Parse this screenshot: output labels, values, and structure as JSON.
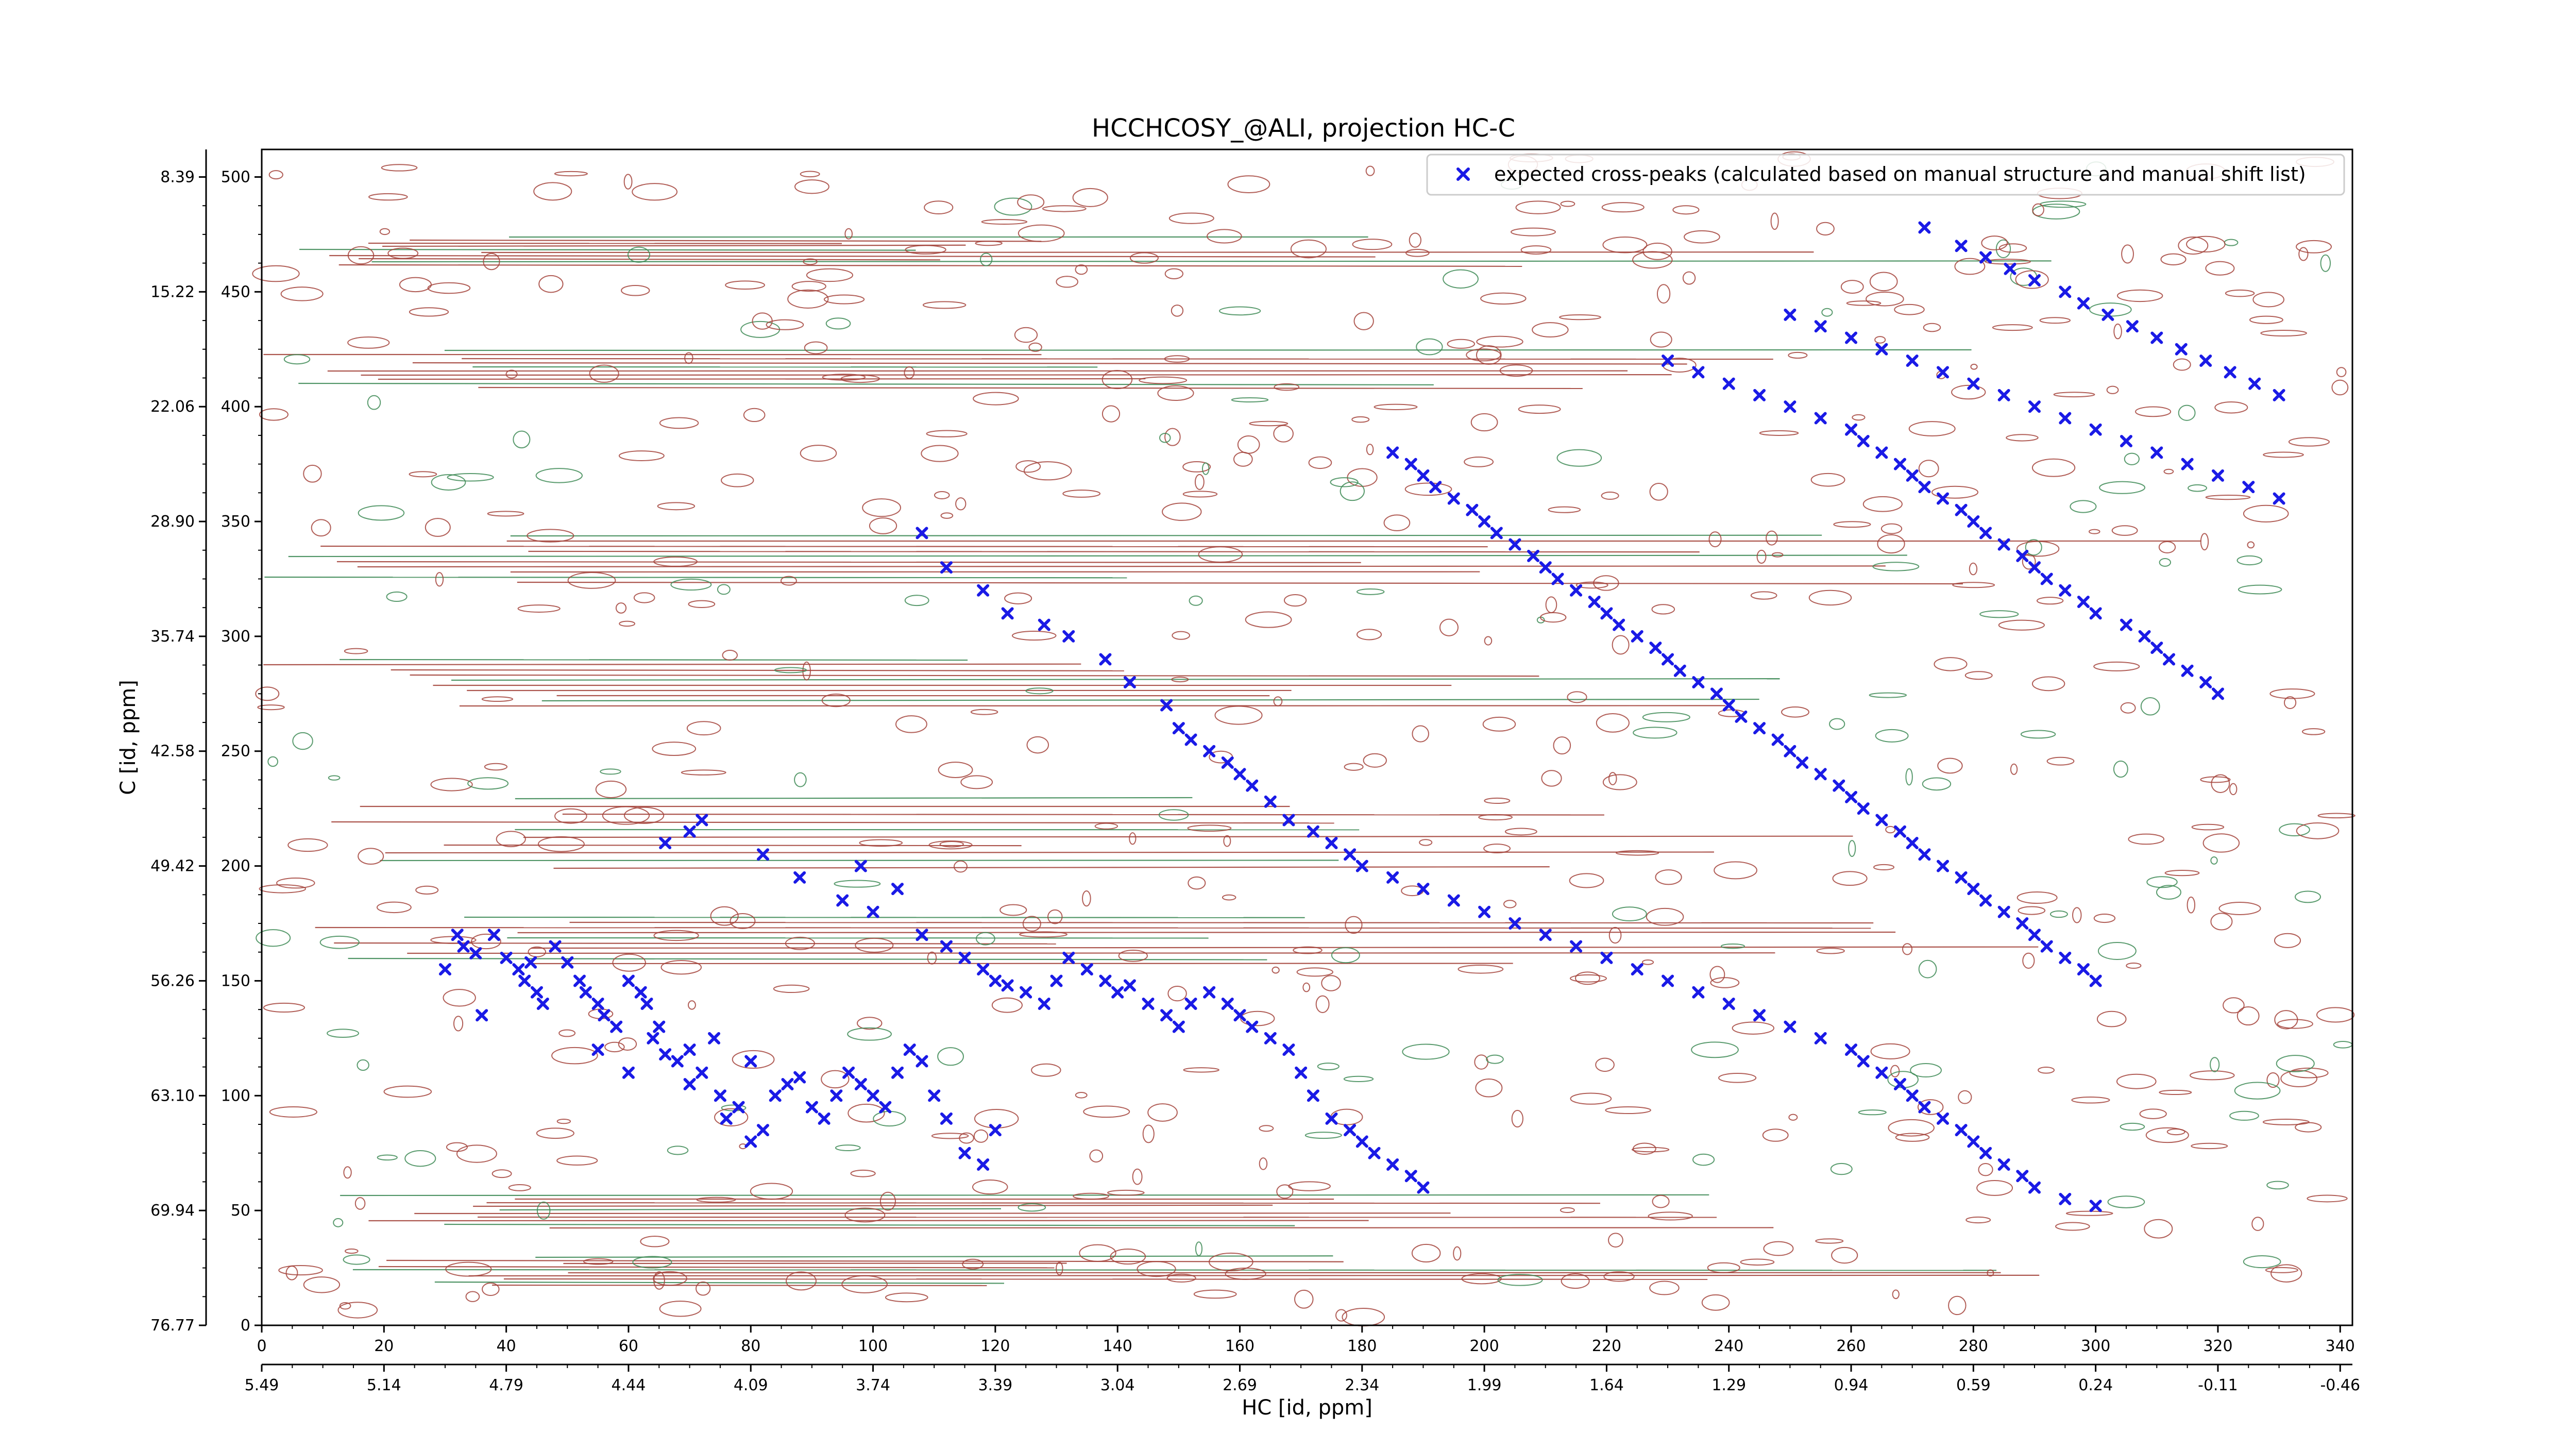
{
  "chart_data": {
    "type": "scatter",
    "title": "HCCHCOSY_@ALI, projection HC-C",
    "xlabel": "HC [id, ppm]",
    "ylabel": "C [id, ppm]",
    "xlim": [
      0,
      342
    ],
    "ylim": [
      0,
      512
    ],
    "x_ticks": [
      0,
      20,
      40,
      60,
      80,
      100,
      120,
      140,
      160,
      180,
      200,
      220,
      240,
      260,
      280,
      300,
      320,
      340
    ],
    "x_tick_labels": [
      "0",
      "20",
      "40",
      "60",
      "80",
      "100",
      "120",
      "140",
      "160",
      "180",
      "200",
      "220",
      "240",
      "260",
      "280",
      "300",
      "320",
      "340"
    ],
    "x_ppm_ticks": [
      {
        "pos": 0,
        "label": "5.49"
      },
      {
        "pos": 20,
        "label": "5.14"
      },
      {
        "pos": 40,
        "label": "4.79"
      },
      {
        "pos": 60,
        "label": "4.44"
      },
      {
        "pos": 80,
        "label": "4.09"
      },
      {
        "pos": 100,
        "label": "3.74"
      },
      {
        "pos": 120,
        "label": "3.39"
      },
      {
        "pos": 140,
        "label": "3.04"
      },
      {
        "pos": 160,
        "label": "2.69"
      },
      {
        "pos": 180,
        "label": "2.34"
      },
      {
        "pos": 200,
        "label": "1.99"
      },
      {
        "pos": 220,
        "label": "1.64"
      },
      {
        "pos": 240,
        "label": "1.29"
      },
      {
        "pos": 260,
        "label": "0.94"
      },
      {
        "pos": 280,
        "label": "0.59"
      },
      {
        "pos": 300,
        "label": "0.24"
      },
      {
        "pos": 320,
        "label": "-0.11"
      },
      {
        "pos": 340,
        "label": "-0.46"
      }
    ],
    "y_ticks": [
      0,
      50,
      100,
      150,
      200,
      250,
      300,
      350,
      400,
      450,
      500
    ],
    "y_tick_labels": [
      "0",
      "50",
      "100",
      "150",
      "200",
      "250",
      "300",
      "350",
      "400",
      "450",
      "500"
    ],
    "y_ppm_ticks": [
      {
        "pos": 0,
        "label": "76.77"
      },
      {
        "pos": 50,
        "label": "69.94"
      },
      {
        "pos": 100,
        "label": "63.10"
      },
      {
        "pos": 150,
        "label": "56.26"
      },
      {
        "pos": 200,
        "label": "49.42"
      },
      {
        "pos": 250,
        "label": "42.58"
      },
      {
        "pos": 300,
        "label": "35.74"
      },
      {
        "pos": 350,
        "label": "28.90"
      },
      {
        "pos": 400,
        "label": "22.06"
      },
      {
        "pos": 450,
        "label": "15.22"
      },
      {
        "pos": 500,
        "label": "8.39"
      }
    ],
    "grid": false,
    "legend_position": "top-right",
    "colors": {
      "peaks": "#1a1ae6",
      "contour_positive": "#a3423a",
      "contour_negative": "#3d8a55"
    },
    "series": [
      {
        "name": "expected cross-peaks (calculated based on manual structure and manual shift list)",
        "marker": "x",
        "color": "#1a1ae6",
        "points": [
          [
            30,
            155
          ],
          [
            32,
            170
          ],
          [
            33,
            165
          ],
          [
            35,
            162
          ],
          [
            36,
            135
          ],
          [
            38,
            170
          ],
          [
            40,
            160
          ],
          [
            42,
            155
          ],
          [
            43,
            150
          ],
          [
            44,
            158
          ],
          [
            45,
            145
          ],
          [
            46,
            140
          ],
          [
            48,
            165
          ],
          [
            50,
            158
          ],
          [
            52,
            150
          ],
          [
            53,
            145
          ],
          [
            55,
            140
          ],
          [
            55,
            120
          ],
          [
            56,
            135
          ],
          [
            58,
            130
          ],
          [
            60,
            150
          ],
          [
            60,
            110
          ],
          [
            62,
            145
          ],
          [
            63,
            140
          ],
          [
            64,
            125
          ],
          [
            65,
            130
          ],
          [
            66,
            118
          ],
          [
            68,
            115
          ],
          [
            70,
            120
          ],
          [
            70,
            105
          ],
          [
            72,
            110
          ],
          [
            74,
            125
          ],
          [
            75,
            100
          ],
          [
            76,
            90
          ],
          [
            78,
            95
          ],
          [
            80,
            115
          ],
          [
            80,
            80
          ],
          [
            82,
            85
          ],
          [
            84,
            100
          ],
          [
            86,
            105
          ],
          [
            88,
            108
          ],
          [
            90,
            95
          ],
          [
            92,
            90
          ],
          [
            94,
            100
          ],
          [
            96,
            110
          ],
          [
            98,
            105
          ],
          [
            100,
            100
          ],
          [
            102,
            95
          ],
          [
            104,
            110
          ],
          [
            106,
            120
          ],
          [
            108,
            115
          ],
          [
            110,
            100
          ],
          [
            112,
            90
          ],
          [
            115,
            75
          ],
          [
            118,
            70
          ],
          [
            120,
            85
          ],
          [
            66,
            210
          ],
          [
            70,
            215
          ],
          [
            72,
            220
          ],
          [
            82,
            205
          ],
          [
            88,
            195
          ],
          [
            95,
            185
          ],
          [
            98,
            200
          ],
          [
            100,
            180
          ],
          [
            104,
            190
          ],
          [
            108,
            170
          ],
          [
            112,
            165
          ],
          [
            115,
            160
          ],
          [
            118,
            155
          ],
          [
            120,
            150
          ],
          [
            122,
            148
          ],
          [
            125,
            145
          ],
          [
            128,
            140
          ],
          [
            130,
            150
          ],
          [
            132,
            160
          ],
          [
            135,
            155
          ],
          [
            138,
            150
          ],
          [
            140,
            145
          ],
          [
            142,
            148
          ],
          [
            145,
            140
          ],
          [
            148,
            135
          ],
          [
            150,
            130
          ],
          [
            152,
            140
          ],
          [
            155,
            145
          ],
          [
            158,
            140
          ],
          [
            160,
            135
          ],
          [
            162,
            130
          ],
          [
            165,
            125
          ],
          [
            168,
            120
          ],
          [
            170,
            110
          ],
          [
            172,
            100
          ],
          [
            175,
            90
          ],
          [
            178,
            85
          ],
          [
            180,
            80
          ],
          [
            182,
            75
          ],
          [
            185,
            70
          ],
          [
            188,
            65
          ],
          [
            190,
            60
          ],
          [
            108,
            345
          ],
          [
            112,
            330
          ],
          [
            118,
            320
          ],
          [
            122,
            310
          ],
          [
            128,
            305
          ],
          [
            132,
            300
          ],
          [
            138,
            290
          ],
          [
            142,
            280
          ],
          [
            148,
            270
          ],
          [
            150,
            260
          ],
          [
            152,
            255
          ],
          [
            155,
            250
          ],
          [
            158,
            245
          ],
          [
            160,
            240
          ],
          [
            162,
            235
          ],
          [
            165,
            228
          ],
          [
            168,
            220
          ],
          [
            172,
            215
          ],
          [
            175,
            210
          ],
          [
            178,
            205
          ],
          [
            180,
            200
          ],
          [
            185,
            195
          ],
          [
            190,
            190
          ],
          [
            195,
            185
          ],
          [
            200,
            180
          ],
          [
            205,
            175
          ],
          [
            210,
            170
          ],
          [
            215,
            165
          ],
          [
            220,
            160
          ],
          [
            225,
            155
          ],
          [
            230,
            150
          ],
          [
            235,
            145
          ],
          [
            240,
            140
          ],
          [
            245,
            135
          ],
          [
            250,
            130
          ],
          [
            255,
            125
          ],
          [
            260,
            120
          ],
          [
            262,
            115
          ],
          [
            265,
            110
          ],
          [
            268,
            105
          ],
          [
            270,
            100
          ],
          [
            272,
            95
          ],
          [
            275,
            90
          ],
          [
            278,
            85
          ],
          [
            280,
            80
          ],
          [
            282,
            75
          ],
          [
            285,
            70
          ],
          [
            288,
            65
          ],
          [
            290,
            60
          ],
          [
            295,
            55
          ],
          [
            300,
            52
          ],
          [
            185,
            380
          ],
          [
            188,
            375
          ],
          [
            190,
            370
          ],
          [
            192,
            365
          ],
          [
            195,
            360
          ],
          [
            198,
            355
          ],
          [
            200,
            350
          ],
          [
            202,
            345
          ],
          [
            205,
            340
          ],
          [
            208,
            335
          ],
          [
            210,
            330
          ],
          [
            212,
            325
          ],
          [
            215,
            320
          ],
          [
            218,
            315
          ],
          [
            220,
            310
          ],
          [
            222,
            305
          ],
          [
            225,
            300
          ],
          [
            228,
            295
          ],
          [
            230,
            290
          ],
          [
            232,
            285
          ],
          [
            235,
            280
          ],
          [
            238,
            275
          ],
          [
            240,
            270
          ],
          [
            242,
            265
          ],
          [
            245,
            260
          ],
          [
            248,
            255
          ],
          [
            250,
            250
          ],
          [
            252,
            245
          ],
          [
            255,
            240
          ],
          [
            258,
            235
          ],
          [
            260,
            230
          ],
          [
            262,
            225
          ],
          [
            265,
            220
          ],
          [
            268,
            215
          ],
          [
            270,
            210
          ],
          [
            272,
            205
          ],
          [
            275,
            200
          ],
          [
            278,
            195
          ],
          [
            280,
            190
          ],
          [
            282,
            185
          ],
          [
            285,
            180
          ],
          [
            288,
            175
          ],
          [
            290,
            170
          ],
          [
            292,
            165
          ],
          [
            295,
            160
          ],
          [
            298,
            155
          ],
          [
            300,
            150
          ],
          [
            230,
            420
          ],
          [
            235,
            415
          ],
          [
            240,
            410
          ],
          [
            245,
            405
          ],
          [
            250,
            400
          ],
          [
            255,
            395
          ],
          [
            260,
            390
          ],
          [
            262,
            385
          ],
          [
            265,
            380
          ],
          [
            268,
            375
          ],
          [
            270,
            370
          ],
          [
            272,
            365
          ],
          [
            275,
            360
          ],
          [
            278,
            355
          ],
          [
            280,
            350
          ],
          [
            282,
            345
          ],
          [
            285,
            340
          ],
          [
            288,
            335
          ],
          [
            290,
            330
          ],
          [
            292,
            325
          ],
          [
            295,
            320
          ],
          [
            298,
            315
          ],
          [
            300,
            310
          ],
          [
            305,
            305
          ],
          [
            308,
            300
          ],
          [
            310,
            295
          ],
          [
            312,
            290
          ],
          [
            315,
            285
          ],
          [
            318,
            280
          ],
          [
            320,
            275
          ],
          [
            250,
            440
          ],
          [
            255,
            435
          ],
          [
            260,
            430
          ],
          [
            265,
            425
          ],
          [
            270,
            420
          ],
          [
            275,
            415
          ],
          [
            280,
            410
          ],
          [
            285,
            405
          ],
          [
            290,
            400
          ],
          [
            295,
            395
          ],
          [
            300,
            390
          ],
          [
            305,
            385
          ],
          [
            310,
            380
          ],
          [
            315,
            375
          ],
          [
            320,
            370
          ],
          [
            325,
            365
          ],
          [
            330,
            360
          ],
          [
            272,
            478
          ],
          [
            278,
            470
          ],
          [
            282,
            465
          ],
          [
            286,
            460
          ],
          [
            290,
            455
          ],
          [
            295,
            450
          ],
          [
            298,
            445
          ],
          [
            302,
            440
          ],
          [
            306,
            435
          ],
          [
            310,
            430
          ],
          [
            314,
            425
          ],
          [
            318,
            420
          ],
          [
            322,
            415
          ],
          [
            326,
            410
          ],
          [
            330,
            405
          ]
        ]
      }
    ]
  }
}
